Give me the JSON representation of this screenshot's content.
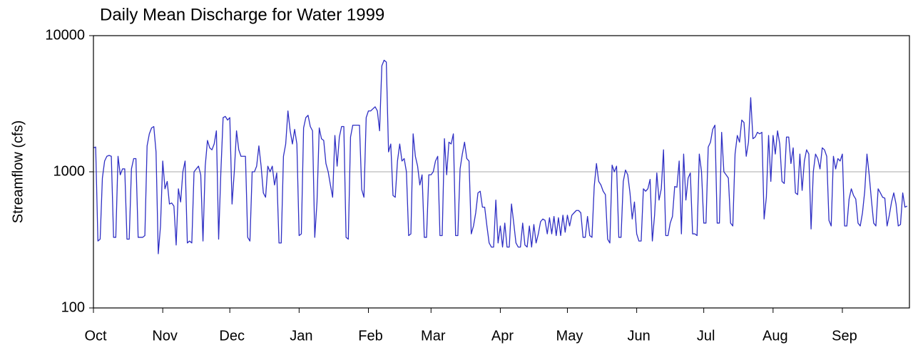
{
  "chart_data": {
    "type": "line",
    "title": "Daily Mean Discharge for Water 1999",
    "y_label": "Streamflow (cfs)",
    "log_y": true,
    "grid": true,
    "xlim": [
      0,
      365
    ],
    "ylim": [
      100,
      10000
    ],
    "yticks": [
      100,
      1000,
      10000
    ],
    "xticks": [
      {
        "value": 0,
        "label": "Oct"
      },
      {
        "value": 31,
        "label": "Nov"
      },
      {
        "value": 61,
        "label": "Dec"
      },
      {
        "value": 92,
        "label": "Jan"
      },
      {
        "value": 123,
        "label": "Feb"
      },
      {
        "value": 151,
        "label": "Mar"
      },
      {
        "value": 182,
        "label": "Apr"
      },
      {
        "value": 212,
        "label": "May"
      },
      {
        "value": 243,
        "label": "Jun"
      },
      {
        "value": 273,
        "label": "Jul"
      },
      {
        "value": 304,
        "label": "Aug"
      },
      {
        "value": 335,
        "label": "Sep"
      }
    ],
    "x": [
      0,
      1,
      2,
      3,
      4,
      5,
      6,
      7,
      8,
      9,
      10,
      11,
      12,
      13,
      14,
      15,
      16,
      17,
      18,
      19,
      20,
      21,
      22,
      23,
      24,
      25,
      26,
      27,
      28,
      29,
      30,
      31,
      32,
      33,
      34,
      35,
      36,
      37,
      38,
      39,
      40,
      41,
      42,
      43,
      44,
      45,
      46,
      47,
      48,
      49,
      50,
      51,
      52,
      53,
      54,
      55,
      56,
      57,
      58,
      59,
      60,
      61,
      62,
      63,
      64,
      65,
      66,
      67,
      68,
      69,
      70,
      71,
      72,
      73,
      74,
      75,
      76,
      77,
      78,
      79,
      80,
      81,
      82,
      83,
      84,
      85,
      86,
      87,
      88,
      89,
      90,
      91,
      92,
      93,
      94,
      95,
      96,
      97,
      98,
      99,
      100,
      101,
      102,
      103,
      104,
      105,
      106,
      107,
      108,
      109,
      110,
      111,
      112,
      113,
      114,
      115,
      116,
      117,
      118,
      119,
      120,
      121,
      122,
      123,
      124,
      125,
      126,
      127,
      128,
      129,
      130,
      131,
      132,
      133,
      134,
      135,
      136,
      137,
      138,
      139,
      140,
      141,
      142,
      143,
      144,
      145,
      146,
      147,
      148,
      149,
      150,
      151,
      152,
      153,
      154,
      155,
      156,
      157,
      158,
      159,
      160,
      161,
      162,
      163,
      164,
      165,
      166,
      167,
      168,
      169,
      170,
      171,
      172,
      173,
      174,
      175,
      176,
      177,
      178,
      179,
      180,
      181,
      182,
      183,
      184,
      185,
      186,
      187,
      188,
      189,
      190,
      191,
      192,
      193,
      194,
      195,
      196,
      197,
      198,
      199,
      200,
      201,
      202,
      203,
      204,
      205,
      206,
      207,
      208,
      209,
      210,
      211,
      212,
      213,
      214,
      215,
      216,
      217,
      218,
      219,
      220,
      221,
      222,
      223,
      224,
      225,
      226,
      227,
      228,
      229,
      230,
      231,
      232,
      233,
      234,
      235,
      236,
      237,
      238,
      239,
      240,
      241,
      242,
      243,
      244,
      245,
      246,
      247,
      248,
      249,
      250,
      251,
      252,
      253,
      254,
      255,
      256,
      257,
      258,
      259,
      260,
      261,
      262,
      263,
      264,
      265,
      266,
      267,
      268,
      269,
      270,
      271,
      272,
      273,
      274,
      275,
      276,
      277,
      278,
      279,
      280,
      281,
      282,
      283,
      284,
      285,
      286,
      287,
      288,
      289,
      290,
      291,
      292,
      293,
      294,
      295,
      296,
      297,
      298,
      299,
      300,
      301,
      302,
      303,
      304,
      305,
      306,
      307,
      308,
      309,
      310,
      311,
      312,
      313,
      314,
      315,
      316,
      317,
      318,
      319,
      320,
      321,
      322,
      323,
      324,
      325,
      326,
      327,
      328,
      329,
      330,
      331,
      332,
      333,
      334,
      335,
      336,
      337,
      338,
      339,
      340,
      341,
      342,
      343,
      344,
      345,
      346,
      347,
      348,
      349,
      350,
      351,
      352,
      353,
      354,
      355,
      356,
      357,
      358,
      359,
      360,
      361,
      362,
      363,
      364
    ],
    "series": [
      {
        "name": "Daily Mean Discharge",
        "color": "#2f2fc4",
        "values": [
          1500,
          1520,
          310,
          320,
          900,
          1200,
          1300,
          1320,
          1300,
          330,
          330,
          1300,
          950,
          1050,
          1050,
          320,
          320,
          1050,
          1250,
          1250,
          330,
          330,
          330,
          340,
          1550,
          1900,
          2100,
          2150,
          1400,
          250,
          400,
          1200,
          750,
          850,
          580,
          590,
          560,
          290,
          750,
          600,
          1000,
          1200,
          300,
          310,
          300,
          1000,
          1050,
          1100,
          950,
          310,
          1100,
          1700,
          1500,
          1450,
          1600,
          2000,
          320,
          1000,
          2500,
          2550,
          2400,
          2500,
          580,
          1000,
          2000,
          1450,
          1300,
          1300,
          1300,
          330,
          310,
          1000,
          1000,
          1100,
          1550,
          1100,
          700,
          650,
          1100,
          1000,
          1100,
          800,
          980,
          300,
          300,
          1300,
          1600,
          2800,
          2000,
          1600,
          2050,
          1600,
          340,
          350,
          2100,
          2500,
          2600,
          2150,
          2000,
          330,
          600,
          2100,
          1750,
          1700,
          1150,
          1000,
          800,
          650,
          1850,
          1100,
          1800,
          2150,
          2150,
          330,
          320,
          1800,
          2200,
          2200,
          2200,
          2200,
          740,
          650,
          2500,
          2800,
          2800,
          2900,
          3000,
          2800,
          2000,
          6000,
          6600,
          6400,
          1400,
          1600,
          670,
          650,
          1200,
          1600,
          1200,
          1250,
          1000,
          340,
          350,
          1900,
          1300,
          1100,
          800,
          950,
          330,
          330,
          950,
          950,
          1000,
          1200,
          1300,
          340,
          340,
          1750,
          950,
          1650,
          1600,
          1900,
          340,
          340,
          1050,
          1350,
          1650,
          1250,
          1200,
          350,
          400,
          500,
          700,
          720,
          550,
          550,
          400,
          300,
          280,
          280,
          620,
          300,
          400,
          280,
          420,
          280,
          280,
          580,
          420,
          300,
          280,
          280,
          420,
          290,
          280,
          400,
          280,
          410,
          300,
          350,
          430,
          450,
          440,
          350,
          460,
          350,
          470,
          340,
          460,
          340,
          480,
          360,
          480,
          400,
          480,
          500,
          520,
          520,
          500,
          330,
          330,
          470,
          340,
          330,
          780,
          1150,
          850,
          800,
          720,
          680,
          320,
          300,
          1120,
          1000,
          1100,
          330,
          330,
          850,
          1030,
          950,
          700,
          450,
          600,
          350,
          310,
          310,
          750,
          720,
          750,
          880,
          310,
          480,
          980,
          620,
          750,
          1450,
          340,
          340,
          420,
          470,
          780,
          770,
          1200,
          350,
          1350,
          620,
          900,
          980,
          350,
          350,
          340,
          1350,
          1000,
          420,
          420,
          1520,
          1650,
          2050,
          2200,
          420,
          420,
          1950,
          1000,
          950,
          900,
          420,
          400,
          1350,
          1850,
          1650,
          2400,
          2300,
          1300,
          1650,
          3500,
          1750,
          1800,
          1950,
          1900,
          1950,
          450,
          650,
          1850,
          850,
          1850,
          1350,
          2000,
          1600,
          850,
          820,
          1800,
          1800,
          1150,
          1500,
          700,
          680,
          1350,
          730,
          1200,
          1450,
          1350,
          380,
          1000,
          1350,
          1250,
          1050,
          1500,
          1450,
          1300,
          440,
          400,
          1300,
          1050,
          1250,
          1200,
          1350,
          400,
          400,
          630,
          750,
          670,
          630,
          420,
          400,
          500,
          720,
          1350,
          950,
          620,
          420,
          400,
          750,
          700,
          650,
          640,
          400,
          480,
          600,
          700,
          580,
          400,
          410,
          700,
          550,
          560
        ]
      }
    ]
  }
}
